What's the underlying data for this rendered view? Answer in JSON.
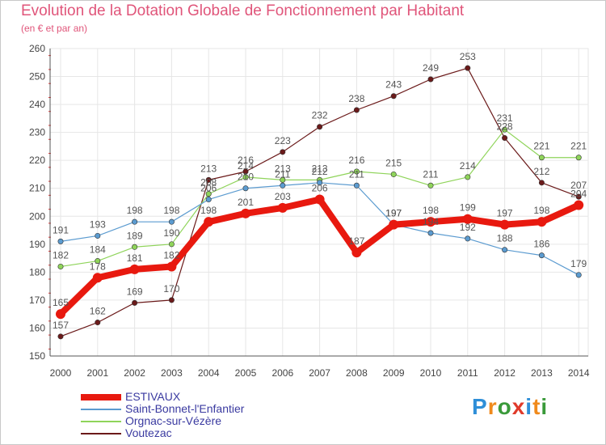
{
  "title": "Evolution de la Dotation Globale de Fonctionnement par Habitant",
  "subtitle": "(en € et par an)",
  "logo": {
    "text": "Proxiti",
    "letters": [
      "P",
      "r",
      "o",
      "x",
      "i",
      "t",
      "i"
    ],
    "colors": [
      "#2f8fd8",
      "#f08a1c",
      "#3a9a3a",
      "#e03a2a",
      "#2f8fd8",
      "#f08a1c",
      "#3a9a3a"
    ]
  },
  "chart_data": {
    "type": "line",
    "title": "Evolution de la Dotation Globale de Fonctionnement par Habitant",
    "subtitle": "(en € et par an)",
    "xlabel": "",
    "ylabel": "",
    "x": [
      "2000",
      "2001",
      "2002",
      "2003",
      "2004",
      "2005",
      "2006",
      "2007",
      "2008",
      "2009",
      "2010",
      "2011",
      "2012",
      "2013",
      "2014"
    ],
    "ylim": [
      150,
      260
    ],
    "yticks": [
      150,
      160,
      170,
      180,
      190,
      200,
      210,
      220,
      230,
      240,
      250,
      260
    ],
    "grid": true,
    "legend_position": "bottom-left",
    "series": [
      {
        "name": "Voutezac",
        "color": "#6b1a1a",
        "values": [
          157,
          162,
          169,
          170,
          213,
          216,
          223,
          232,
          238,
          243,
          249,
          253,
          228,
          212,
          207
        ]
      },
      {
        "name": "Orgnac-sur-Vézère",
        "color": "#8fd45a",
        "values": [
          182,
          184,
          189,
          190,
          208,
          214,
          213,
          213,
          216,
          215,
          211,
          214,
          231,
          221,
          221
        ]
      },
      {
        "name": "Saint-Bonnet-l'Enfantier",
        "color": "#5b9bd0",
        "values": [
          191,
          193,
          198,
          198,
          206,
          210,
          211,
          212,
          211,
          197,
          194,
          192,
          188,
          186,
          179
        ]
      },
      {
        "name": "ESTIVAUX",
        "color": "#e8190f",
        "values": [
          165,
          178,
          181,
          182,
          198,
          201,
          203,
          206,
          187,
          197,
          198,
          199,
          197,
          198,
          204
        ]
      }
    ],
    "legend": [
      "ESTIVAUX",
      "Saint-Bonnet-l'Enfantier",
      "Orgnac-sur-Vézère",
      "Voutezac"
    ]
  }
}
